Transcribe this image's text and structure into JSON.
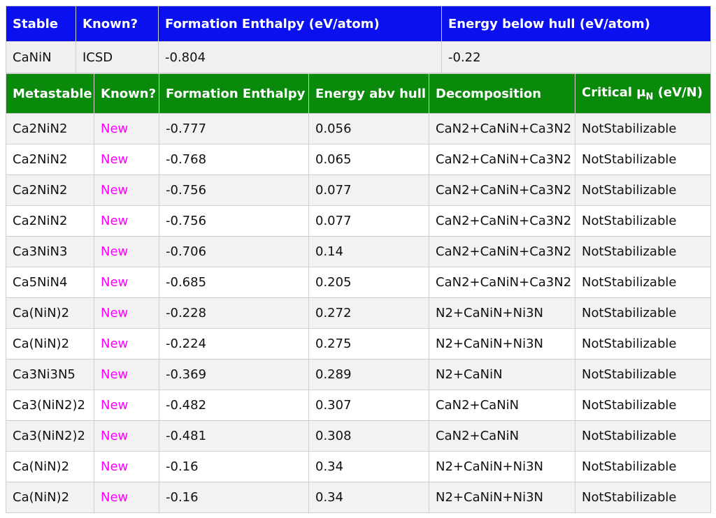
{
  "stable": {
    "headers": [
      "Stable",
      "Known?",
      "Formation Enthalpy (eV/atom)",
      "Energy below hull (eV/atom)"
    ],
    "row": [
      "CaNiN",
      "ICSD",
      "-0.804",
      "-0.22"
    ]
  },
  "metastable": {
    "headers": [
      "Metastable",
      "Known?",
      "Formation Enthalpy",
      "Energy abv hull",
      "Decomposition"
    ],
    "critical_header": {
      "prefix": "Critical μ",
      "sub": "N",
      "suffix": " (eV/N)"
    },
    "rows": [
      [
        "Ca2NiN2",
        "New",
        "-0.777",
        "0.056",
        "CaN2+CaNiN+Ca3N2",
        "NotStabilizable"
      ],
      [
        "Ca2NiN2",
        "New",
        "-0.768",
        "0.065",
        "CaN2+CaNiN+Ca3N2",
        "NotStabilizable"
      ],
      [
        "Ca2NiN2",
        "New",
        "-0.756",
        "0.077",
        "CaN2+CaNiN+Ca3N2",
        "NotStabilizable"
      ],
      [
        "Ca2NiN2",
        "New",
        "-0.756",
        "0.077",
        "CaN2+CaNiN+Ca3N2",
        "NotStabilizable"
      ],
      [
        "Ca3NiN3",
        "New",
        "-0.706",
        "0.14",
        "CaN2+CaNiN+Ca3N2",
        "NotStabilizable"
      ],
      [
        "Ca5NiN4",
        "New",
        "-0.685",
        "0.205",
        "CaN2+CaNiN+Ca3N2",
        "NotStabilizable"
      ],
      [
        "Ca(NiN)2",
        "New",
        "-0.228",
        "0.272",
        "N2+CaNiN+Ni3N",
        "NotStabilizable"
      ],
      [
        "Ca(NiN)2",
        "New",
        "-0.224",
        "0.275",
        "N2+CaNiN+Ni3N",
        "NotStabilizable"
      ],
      [
        "Ca3Ni3N5",
        "New",
        "-0.369",
        "0.289",
        "N2+CaNiN",
        "NotStabilizable"
      ],
      [
        "Ca3(NiN2)2",
        "New",
        "-0.482",
        "0.307",
        "CaN2+CaNiN",
        "NotStabilizable"
      ],
      [
        "Ca3(NiN2)2",
        "New",
        "-0.481",
        "0.308",
        "CaN2+CaNiN",
        "NotStabilizable"
      ],
      [
        "Ca(NiN)2",
        "New",
        "-0.16",
        "0.34",
        "N2+CaNiN+Ni3N",
        "NotStabilizable"
      ],
      [
        "Ca(NiN)2",
        "New",
        "-0.16",
        "0.34",
        "N2+CaNiN+Ni3N",
        "NotStabilizable"
      ]
    ]
  },
  "colors": {
    "stable_header": "#0b10ee",
    "metastable_header": "#0a8a0a",
    "new_text": "#ff00ff"
  }
}
